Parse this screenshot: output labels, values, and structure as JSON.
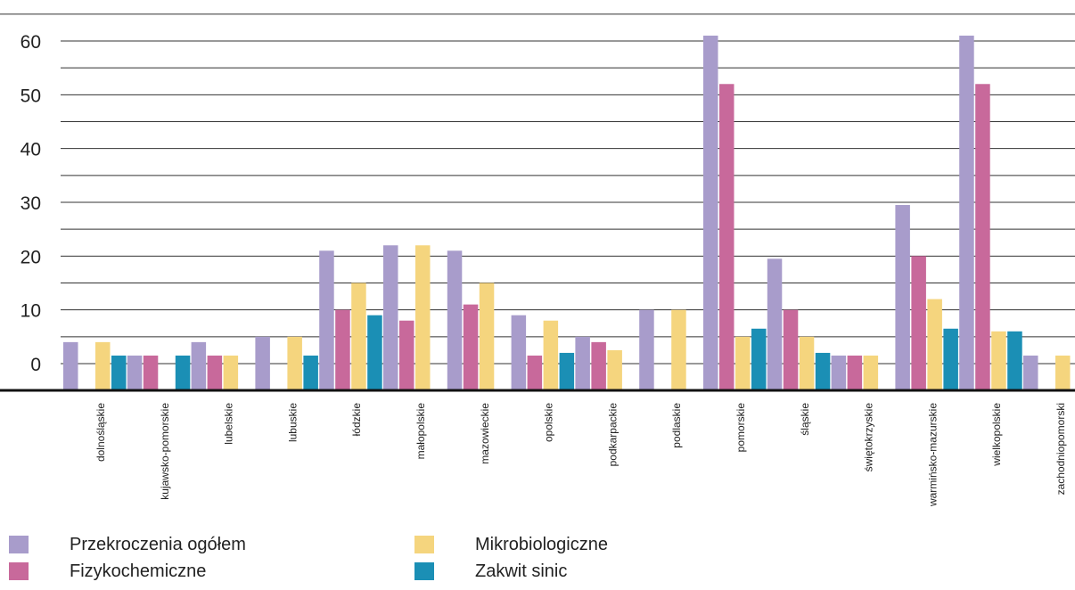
{
  "chart_data": {
    "type": "bar",
    "categories": [
      "dolnośląskie",
      "kujawsko-pomorskie",
      "lubelskie",
      "lubuskie",
      "łódzkie",
      "małopolskie",
      "mazowieckie",
      "opolskie",
      "podkarpackie",
      "podlaskie",
      "pomorskie",
      "śląskie",
      "świętokrzyskie",
      "warmińsko-mazurskie",
      "wielkopolskie",
      "zachodniopomorski"
    ],
    "series": [
      {
        "name": "Przekroczenia ogółem",
        "color": "#a89ccb",
        "values": [
          4,
          1.5,
          4,
          5,
          21,
          22,
          21,
          9,
          5,
          10,
          61,
          19.5,
          1.5,
          29.5,
          61,
          1.5
        ]
      },
      {
        "name": "Fizykochemiczne",
        "color": "#c8699b",
        "values": [
          0,
          1.5,
          1.5,
          0,
          10,
          8,
          11,
          1.5,
          4,
          0,
          52,
          10,
          1.5,
          20,
          52,
          0
        ]
      },
      {
        "name": "Mikrobiologiczne",
        "color": "#f5d57e",
        "values": [
          4,
          0,
          1.5,
          5,
          15,
          22,
          15,
          8,
          2.5,
          10,
          5,
          5,
          1.5,
          12,
          6,
          1.5
        ]
      },
      {
        "name": "Zakwit sinic",
        "color": "#1b8fb5",
        "values": [
          1.5,
          1.5,
          0,
          1.5,
          9,
          0,
          0,
          2,
          0,
          0,
          6.5,
          2,
          0,
          6.5,
          6,
          0
        ]
      }
    ],
    "yticks": [
      "0",
      "10",
      "20",
      "30",
      "40",
      "50",
      "60"
    ],
    "ylim": [
      -5,
      65
    ],
    "grid": true,
    "legend_position": "bottom"
  }
}
